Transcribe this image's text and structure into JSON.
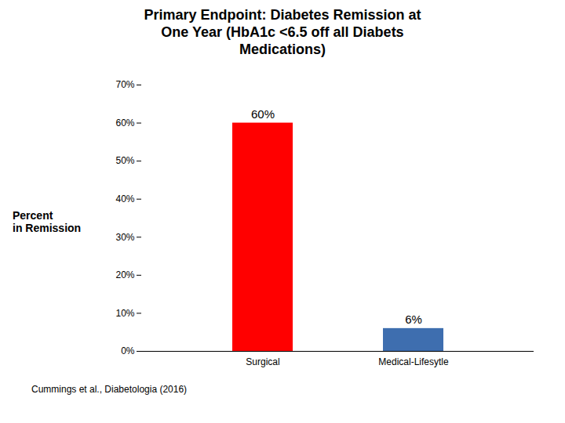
{
  "chart_data": {
    "type": "bar",
    "title": "Primary Endpoint: Diabetes Remission at\nOne Year (HbA1c <6.5 off all Diabets\nMedications)",
    "y_label": "Percent\nin Remission",
    "annotations": [
      "Cummings et al., Diabetologia (2016)"
    ],
    "categories": [
      "Surgical",
      "Medical-Lifesytle"
    ],
    "values": [
      60,
      6
    ],
    "value_labels": [
      "60%",
      "6%"
    ],
    "data_labels": true,
    "colors": [
      "#FF0000",
      "#3E6EAF"
    ],
    "ylim": [
      0,
      70
    ],
    "yticks": [
      {
        "value": 0,
        "label": "0%"
      },
      {
        "value": 10,
        "label": "10%"
      },
      {
        "value": 20,
        "label": "20%"
      },
      {
        "value": 30,
        "label": "30%"
      },
      {
        "value": 40,
        "label": "40%"
      },
      {
        "value": 50,
        "label": "50%"
      },
      {
        "value": 60,
        "label": "60%"
      },
      {
        "value": 70,
        "label": "70%"
      }
    ],
    "grid": false
  }
}
